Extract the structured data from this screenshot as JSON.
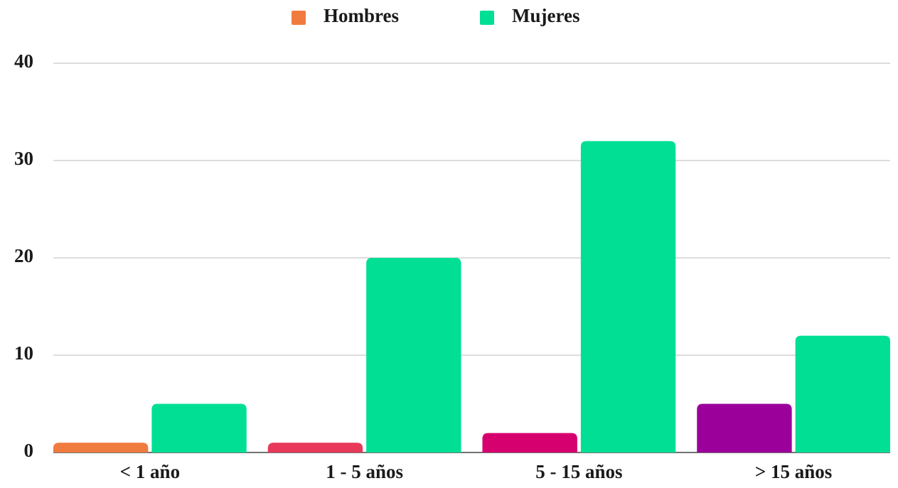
{
  "chart_data": {
    "type": "bar",
    "categories": [
      "< 1 año",
      "1 - 5 años",
      "5 - 15 años",
      "> 15 años"
    ],
    "series": [
      {
        "name": "Hombres",
        "color": "#f07b3f",
        "colors": [
          "#f07b3f",
          "#e8395a",
          "#d6006f",
          "#9b009b"
        ],
        "values": [
          1,
          1,
          2,
          5
        ]
      },
      {
        "name": "Mujeres",
        "color": "#00df94",
        "values": [
          5,
          20,
          32,
          12
        ]
      }
    ],
    "ylim": [
      0,
      40
    ],
    "yticks": [
      0,
      10,
      20,
      30,
      40
    ],
    "grid": true,
    "legend": "top"
  }
}
